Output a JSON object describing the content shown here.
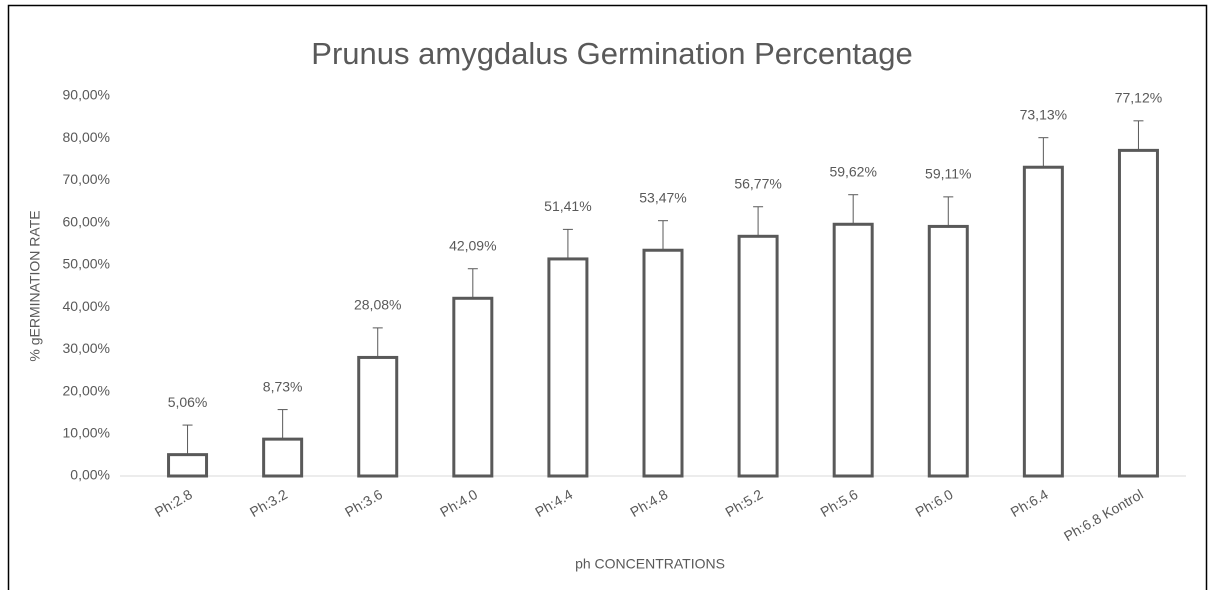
{
  "chart_data": {
    "type": "bar",
    "title": "Prunus amygdalus Germination Percentage",
    "x_label": "ph CONCENTRATIONS",
    "y_label": "% gERMINATION RATE",
    "categories": [
      "Ph:2.8",
      "Ph:3.2",
      "Ph:3.6",
      "Ph:4.0",
      "Ph:4.4",
      "Ph:4.8",
      "Ph:5.2",
      "Ph:5.6",
      "Ph:6.0",
      "Ph:6.4",
      "Ph:6.8 Kontrol"
    ],
    "values": [
      5.06,
      8.73,
      28.08,
      42.09,
      51.41,
      53.47,
      56.77,
      59.62,
      59.11,
      73.13,
      77.12
    ],
    "value_labels": [
      "5,06%",
      "8,73%",
      "28,08%",
      "42,09%",
      "51,41%",
      "53,47%",
      "56,77%",
      "59,62%",
      "59,11%",
      "73,13%",
      "77,12%"
    ],
    "errors": [
      7,
      7,
      7,
      7,
      7,
      7,
      7,
      7,
      7,
      7,
      7
    ],
    "color": "#595959",
    "ylim": [
      0,
      90
    ],
    "yticks": [
      {
        "value": 0,
        "label": "0,00%"
      },
      {
        "value": 10,
        "label": "10,00%"
      },
      {
        "value": 20,
        "label": "20,00%"
      },
      {
        "value": 30,
        "label": "30,00%"
      },
      {
        "value": 40,
        "label": "40,00%"
      },
      {
        "value": 50,
        "label": "50,00%"
      },
      {
        "value": 60,
        "label": "60,00%"
      },
      {
        "value": 70,
        "label": "70,00%"
      },
      {
        "value": 80,
        "label": "80,00%"
      },
      {
        "value": 90,
        "label": "90,00%"
      }
    ],
    "grid": false
  }
}
